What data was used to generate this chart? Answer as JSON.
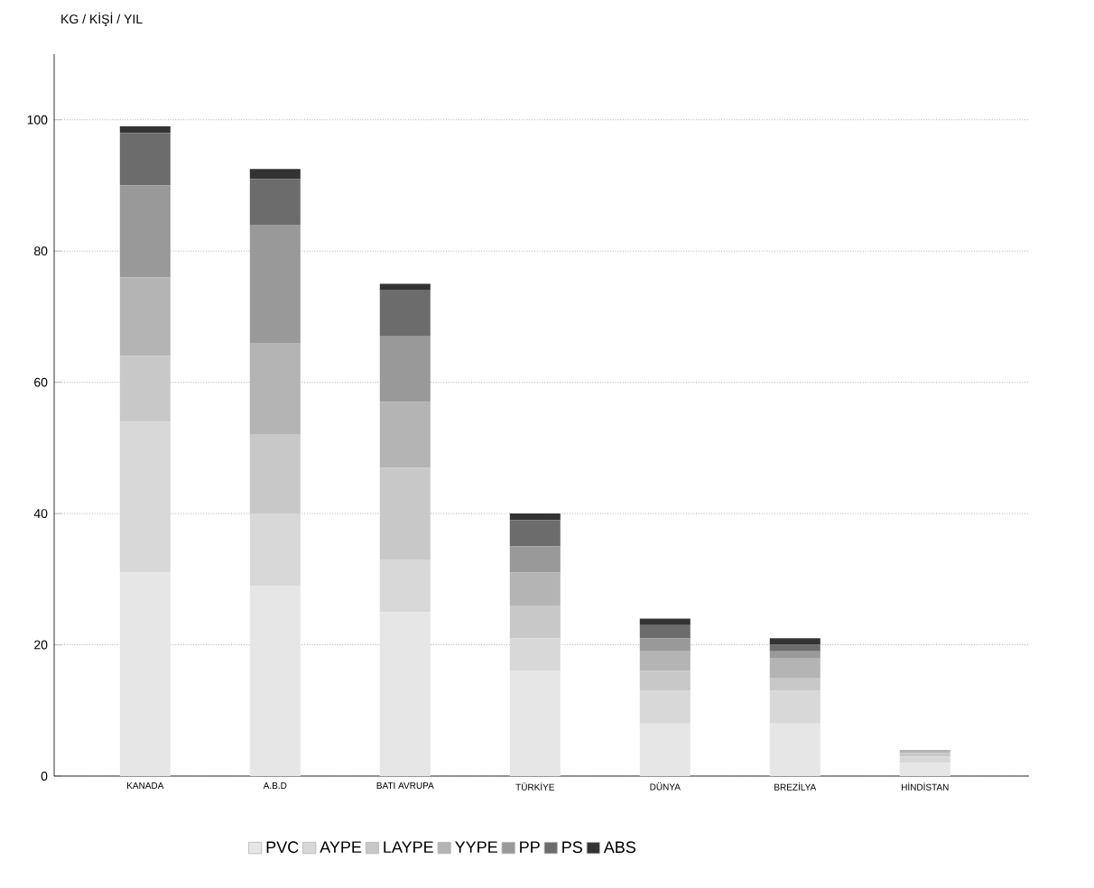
{
  "chart_data": {
    "type": "bar",
    "stacked": true,
    "ylabel": "KG / KİŞİ / YIL",
    "categories": [
      "KANADA",
      "A.B.D",
      "BATI AVRUPA",
      "TÜRKİYE",
      "DÜNYA",
      "BREZİLYA",
      "HİNDİSTAN"
    ],
    "series": [
      {
        "name": "PVC",
        "color": "#e6e6e6",
        "values": [
          31,
          29,
          25,
          16,
          8,
          8,
          2
        ]
      },
      {
        "name": "AYPE",
        "color": "#d8d8d8",
        "values": [
          23,
          11,
          8,
          5,
          5,
          5,
          1
        ]
      },
      {
        "name": "LAYPE",
        "color": "#c8c8c9",
        "values": [
          10,
          12,
          14,
          5,
          3,
          2,
          0.5
        ]
      },
      {
        "name": "YYPE",
        "color": "#b4b4b4",
        "values": [
          12,
          14,
          10,
          5,
          3,
          3,
          0.5
        ]
      },
      {
        "name": "PP",
        "color": "#999999",
        "values": [
          14,
          18,
          10,
          4,
          2,
          1,
          0
        ]
      },
      {
        "name": "PS",
        "color": "#6c6c6c",
        "values": [
          8,
          7,
          7,
          4,
          2,
          1,
          0
        ]
      },
      {
        "name": "ABS",
        "color": "#333333",
        "values": [
          1,
          1.5,
          1,
          1,
          1,
          1,
          0
        ]
      }
    ],
    "ylim": [
      0,
      110
    ],
    "yticks": [
      0,
      20,
      40,
      60,
      80,
      100
    ],
    "grid": "y",
    "legend": "bottom"
  }
}
